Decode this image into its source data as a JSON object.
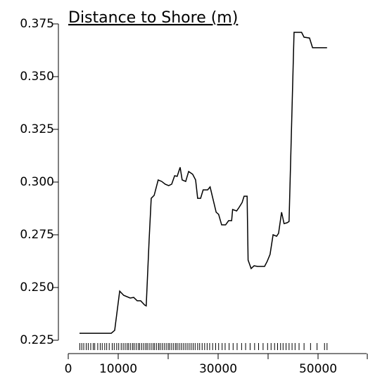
{
  "chart_data": {
    "type": "line",
    "title": "Distance to Shore (m)",
    "color": "#000000",
    "x": [
      2250,
      8600,
      9300,
      10300,
      11100,
      12400,
      13100,
      13800,
      14500,
      15300,
      15600,
      16200,
      16600,
      17200,
      18000,
      18700,
      19400,
      20100,
      20700,
      21300,
      21800,
      22400,
      22800,
      23500,
      24100,
      24900,
      25500,
      25900,
      26500,
      27000,
      27900,
      28400,
      29000,
      29600,
      30100,
      30700,
      31500,
      32100,
      32700,
      32900,
      33700,
      34200,
      34800,
      35200,
      35800,
      36000,
      36600,
      37200,
      37900,
      39300,
      39800,
      40400,
      41000,
      41700,
      42100,
      42700,
      43200,
      43800,
      44200,
      45200,
      46700,
      47200,
      48300,
      48900,
      51800
    ],
    "values": [
      0.2283,
      0.2283,
      0.2297,
      0.2483,
      0.2463,
      0.245,
      0.2453,
      0.2437,
      0.2437,
      0.2417,
      0.2413,
      0.273,
      0.2923,
      0.2937,
      0.301,
      0.3003,
      0.299,
      0.2983,
      0.299,
      0.303,
      0.3027,
      0.307,
      0.301,
      0.3003,
      0.305,
      0.3037,
      0.301,
      0.2923,
      0.2923,
      0.2963,
      0.2963,
      0.2977,
      0.2917,
      0.2857,
      0.2847,
      0.2797,
      0.2797,
      0.2817,
      0.2817,
      0.287,
      0.2863,
      0.288,
      0.2903,
      0.2933,
      0.2933,
      0.263,
      0.259,
      0.2603,
      0.26,
      0.26,
      0.2623,
      0.2657,
      0.275,
      0.2743,
      0.2757,
      0.2857,
      0.2803,
      0.2807,
      0.2813,
      0.371,
      0.371,
      0.3687,
      0.3683,
      0.3637,
      0.3637
    ],
    "rug": [
      2300,
      2700,
      3100,
      3600,
      4000,
      4500,
      5000,
      5300,
      5900,
      6400,
      6800,
      7300,
      7700,
      8200,
      8800,
      9200,
      9700,
      10100,
      10600,
      11000,
      11400,
      11800,
      12100,
      12500,
      12900,
      13200,
      13600,
      14000,
      14300,
      14700,
      15100,
      15500,
      15800,
      16200,
      16600,
      17000,
      17300,
      17700,
      18100,
      18400,
      18800,
      19200,
      19600,
      20000,
      20300,
      20700,
      21100,
      21500,
      21800,
      22200,
      22600,
      23000,
      23400,
      23800,
      24200,
      24600,
      25000,
      25400,
      25900,
      26300,
      26800,
      27300,
      27800,
      28300,
      28900,
      29500,
      30100,
      30800,
      31400,
      32200,
      33000,
      33800,
      34700,
      35500,
      36400,
      37300,
      38100,
      39000,
      39900,
      40600,
      41300,
      41900,
      42500,
      43000,
      43600,
      44200,
      44800,
      45400,
      46200,
      47200,
      48500,
      49800,
      51300,
      51800
    ],
    "xlim": [
      0,
      60000
    ],
    "xticks": [
      0,
      10000,
      30000,
      50000
    ],
    "xticks_minor": [
      20000,
      40000,
      60000
    ],
    "ylim": [
      0.225,
      0.375
    ],
    "yticks": [
      {
        "value": 0.225,
        "label": "0.225"
      },
      {
        "value": 0.25,
        "label": "0.250"
      },
      {
        "value": 0.275,
        "label": "0.275"
      },
      {
        "value": 0.3,
        "label": "0.300"
      },
      {
        "value": 0.325,
        "label": "0.325"
      },
      {
        "value": 0.35,
        "label": "0.350"
      },
      {
        "value": 0.375,
        "label": "0.375"
      }
    ]
  }
}
